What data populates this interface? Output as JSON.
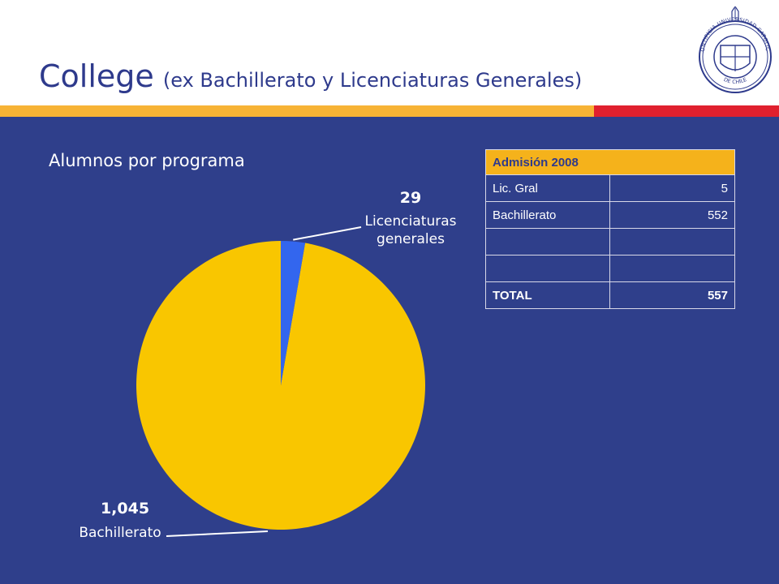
{
  "header": {
    "title": "College",
    "subtitle": "(ex Bachillerato y Licenciaturas Generales)"
  },
  "logo": {
    "text_top": "PONTIFICIA UNIVERSIDAD CATOLICA",
    "text_bottom": "DE CHILE"
  },
  "colors": {
    "panel": "#2f3f8b",
    "title": "#2e3a8c",
    "stripe_yellow": "#f7b335",
    "stripe_red": "#e0202e",
    "slice_main": "#f9c600",
    "slice_small": "#3366ee",
    "table_header": "#f5b21b"
  },
  "chart_data": {
    "type": "pie",
    "title": "Alumnos por programa",
    "slices": [
      {
        "label_lines": [
          "Licenciaturas",
          "generales"
        ],
        "value": 29,
        "value_label": "29"
      },
      {
        "label_lines": [
          "Bachillerato"
        ],
        "value": 1045,
        "value_label": "1,045"
      }
    ]
  },
  "table": {
    "header": "Admisión 2008",
    "rows": [
      {
        "label": "Lic. Gral",
        "value": "5"
      },
      {
        "label": "Bachillerato",
        "value": "552"
      },
      {
        "label": "",
        "value": ""
      },
      {
        "label": "",
        "value": ""
      }
    ],
    "total_label": "TOTAL",
    "total_value": "557"
  }
}
